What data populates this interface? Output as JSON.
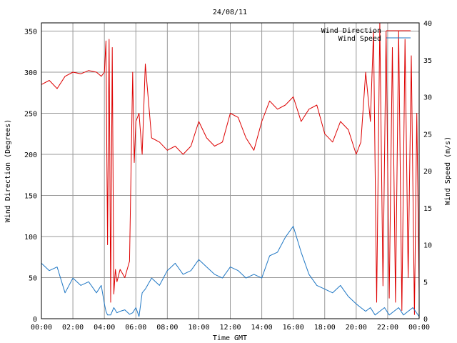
{
  "chart_data": {
    "type": "line",
    "title": "24/08/11",
    "xlabel": "Time GMT",
    "ylabel_left": "Wind Direction (Degrees)",
    "ylabel_right": "Wind Speed (m/s)",
    "xlim": [
      0,
      24
    ],
    "x_ticks": [
      "00:00",
      "02:00",
      "04:00",
      "06:00",
      "08:00",
      "10:00",
      "12:00",
      "14:00",
      "16:00",
      "18:00",
      "20:00",
      "22:00",
      "00:00"
    ],
    "ylim_left": [
      0,
      360
    ],
    "y_ticks_left": [
      "0",
      "50",
      "100",
      "150",
      "200",
      "250",
      "300",
      "350"
    ],
    "ylim_right": [
      0,
      40
    ],
    "y_ticks_right": [
      "0",
      "5",
      "10",
      "15",
      "20",
      "25",
      "30",
      "35",
      "40"
    ],
    "grid": true,
    "legend_position": "top-right",
    "series": [
      {
        "name": "Wind Direction",
        "axis": "left",
        "color": "#dd0000",
        "x": [
          0,
          0.5,
          1,
          1.5,
          2,
          2.5,
          3,
          3.5,
          3.8,
          4.0,
          4.1,
          4.2,
          4.3,
          4.4,
          4.5,
          4.6,
          4.7,
          4.8,
          5.0,
          5.3,
          5.6,
          5.8,
          5.9,
          6.0,
          6.2,
          6.4,
          6.6,
          7.0,
          7.5,
          8.0,
          8.5,
          9.0,
          9.5,
          10.0,
          10.5,
          11.0,
          11.5,
          12.0,
          12.5,
          13.0,
          13.5,
          14.0,
          14.5,
          15.0,
          15.5,
          16.0,
          16.5,
          17.0,
          17.5,
          18.0,
          18.5,
          19.0,
          19.5,
          20.0,
          20.3,
          20.6,
          20.9,
          21.1,
          21.3,
          21.5,
          21.7,
          21.9,
          22.1,
          22.3,
          22.5,
          22.7,
          22.9,
          23.1,
          23.3,
          23.5,
          23.7,
          23.85,
          24.0
        ],
        "values": [
          285,
          290,
          280,
          295,
          300,
          298,
          302,
          300,
          295,
          300,
          338,
          90,
          340,
          20,
          330,
          30,
          60,
          45,
          60,
          50,
          70,
          300,
          190,
          240,
          250,
          200,
          310,
          220,
          215,
          205,
          210,
          200,
          210,
          240,
          220,
          210,
          215,
          250,
          245,
          220,
          205,
          240,
          265,
          255,
          260,
          270,
          240,
          255,
          260,
          225,
          215,
          240,
          230,
          200,
          215,
          300,
          240,
          350,
          20,
          360,
          40,
          350,
          25,
          330,
          20,
          350,
          10,
          340,
          50,
          320,
          5,
          250,
          30
        ]
      },
      {
        "name": "Wind Speed",
        "axis": "right",
        "color": "#1f77c4",
        "x": [
          0,
          0.5,
          1,
          1.5,
          2,
          2.5,
          3,
          3.5,
          3.8,
          4.0,
          4.1,
          4.2,
          4.4,
          4.6,
          4.8,
          5.0,
          5.3,
          5.6,
          5.8,
          6.0,
          6.2,
          6.4,
          6.6,
          7.0,
          7.5,
          8.0,
          8.5,
          9.0,
          9.5,
          10.0,
          10.5,
          11.0,
          11.5,
          12.0,
          12.5,
          13.0,
          13.5,
          14.0,
          14.5,
          15.0,
          15.5,
          16.0,
          16.5,
          17.0,
          17.5,
          18.0,
          18.5,
          19.0,
          19.5,
          20.0,
          20.3,
          20.6,
          20.9,
          21.2,
          21.5,
          21.8,
          22.1,
          22.4,
          22.7,
          23.0,
          23.3,
          23.6,
          24.0
        ],
        "values": [
          7.5,
          6.5,
          7.0,
          3.5,
          5.5,
          4.5,
          5.0,
          3.5,
          4.5,
          2.0,
          1.0,
          0.5,
          0.5,
          1.5,
          0.8,
          1.0,
          1.2,
          0.6,
          0.8,
          1.5,
          0.3,
          3.5,
          4.0,
          5.5,
          4.5,
          6.5,
          7.5,
          6.0,
          6.5,
          8.0,
          7.0,
          6.0,
          5.5,
          7.0,
          6.5,
          5.5,
          6.0,
          5.5,
          8.5,
          9.0,
          11.0,
          12.5,
          9.0,
          6.0,
          4.5,
          4.0,
          3.5,
          4.5,
          3.0,
          2.0,
          1.5,
          1.0,
          1.5,
          0.5,
          1.0,
          1.5,
          0.5,
          1.0,
          1.5,
          0.5,
          1.0,
          1.5,
          0.3
        ]
      }
    ]
  }
}
